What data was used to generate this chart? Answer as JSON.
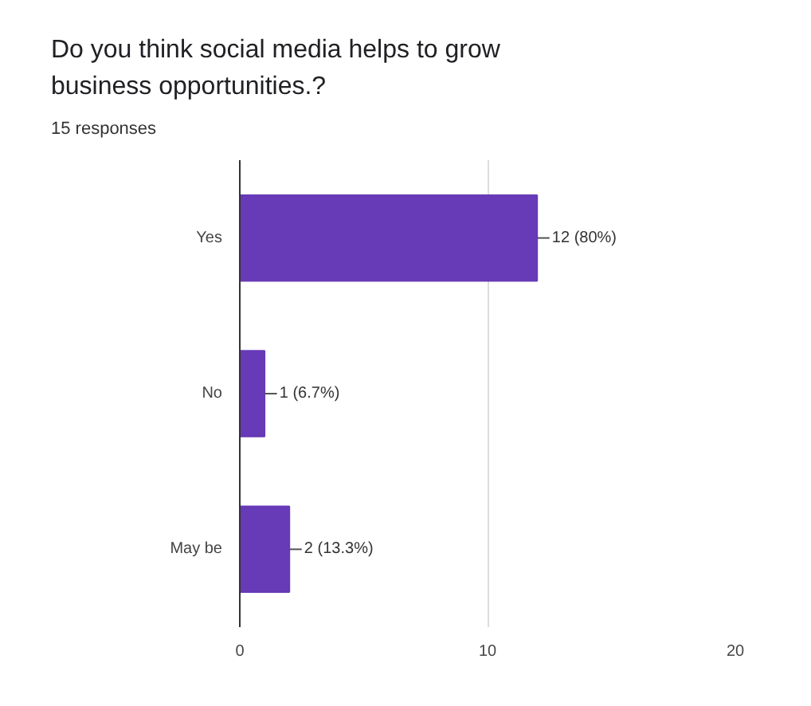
{
  "chart_data": {
    "type": "bar",
    "orientation": "horizontal",
    "title": "Do you think social media helps to grow business opportunities.?",
    "subtitle": "15 responses",
    "categories": [
      "Yes",
      "No",
      "May be"
    ],
    "values": [
      12,
      1,
      2
    ],
    "value_labels": [
      "12 (80%)",
      "1 (6.7%)",
      "2 (13.3%)"
    ],
    "color": "#673ab7",
    "xlim": [
      0,
      20
    ],
    "xticks": [
      0,
      10,
      20
    ],
    "grid": "x"
  }
}
